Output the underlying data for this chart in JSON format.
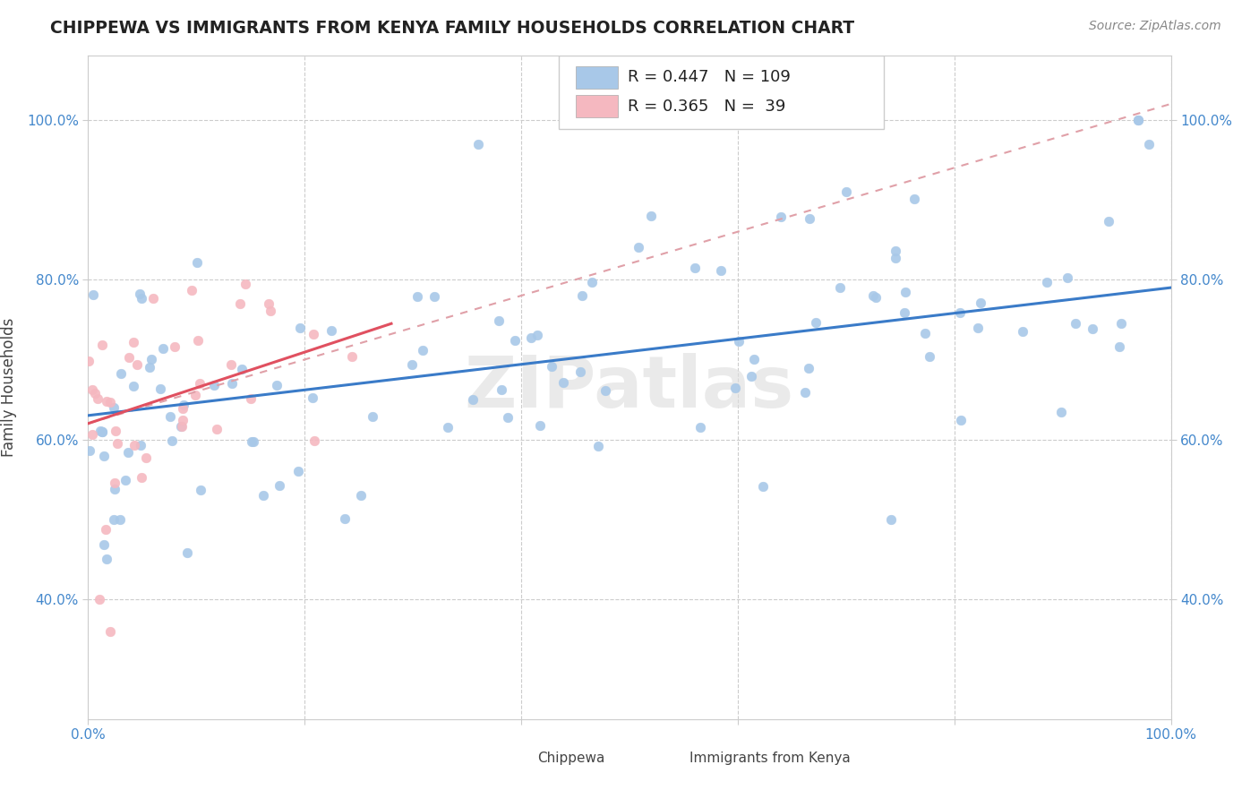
{
  "title": "CHIPPEWA VS IMMIGRANTS FROM KENYA FAMILY HOUSEHOLDS CORRELATION CHART",
  "source": "Source: ZipAtlas.com",
  "ylabel": "Family Households",
  "legend_label1": "Chippewa",
  "legend_label2": "Immigrants from Kenya",
  "R1": "0.447",
  "N1": "109",
  "R2": "0.365",
  "N2": " 39",
  "blue_color": "#A8C8E8",
  "pink_color": "#F5B8C0",
  "blue_line_color": "#3A7BC8",
  "pink_line_color": "#E05060",
  "pink_dash_color": "#E0A0A8",
  "watermark": "ZIPatlas",
  "xlim": [
    0.0,
    1.0
  ],
  "ylim": [
    0.25,
    1.08
  ],
  "yticks": [
    0.4,
    0.6,
    0.8,
    1.0
  ],
  "xticks": [
    0.0,
    0.2,
    0.4,
    0.6,
    0.8,
    1.0
  ]
}
